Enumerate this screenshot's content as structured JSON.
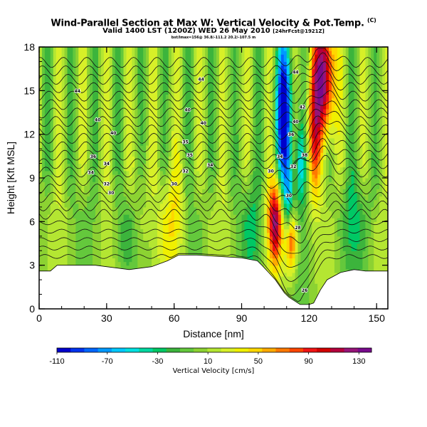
{
  "chart_data": {
    "type": "heatmap",
    "title": "Wind-Parallel Section at Max W: Vertical Velocity & Pot.Temp.",
    "title_mark": "(C)",
    "subtitle": "Valid 1400 LST (1200Z) WED 26 May 2010",
    "subtitle_suffix": "[24hrFcst@1921Z]",
    "subsubtitle": "bst/lmax=156@ 36.8/-111.2 20.2/-107.5 m",
    "xlabel": "Distance [nm]",
    "ylabel": "Height [Kft MSL]",
    "xlim": [
      0,
      155
    ],
    "ylim": [
      0,
      18
    ],
    "xticks": [
      "0",
      "30",
      "60",
      "90",
      "120",
      "150"
    ],
    "yticks": [
      "0",
      "3",
      "6",
      "9",
      "12",
      "15",
      "18"
    ],
    "colorbar": {
      "label": "Vertical Velocity [cm/s]",
      "ticks": [
        "-110",
        "-70",
        "-30",
        "10",
        "50",
        "90",
        "130"
      ],
      "min": -110,
      "max": 140,
      "colors": [
        "#0000cc",
        "#0033ee",
        "#0066ff",
        "#0099ff",
        "#00c8ff",
        "#00e0e0",
        "#00d7a0",
        "#00c864",
        "#3cb43c",
        "#64c83c",
        "#8cd232",
        "#b4e632",
        "#d8f028",
        "#f0f000",
        "#ffd700",
        "#ffaa00",
        "#ff7800",
        "#ff4600",
        "#f01414",
        "#d20000",
        "#b4003c",
        "#961478",
        "#780a8c"
      ]
    },
    "terrain_profile": {
      "distance_nm": [
        0,
        5,
        8,
        25,
        40,
        50,
        57,
        62,
        70,
        80,
        90,
        97,
        99,
        102,
        105,
        109,
        111,
        113,
        116,
        120,
        122,
        125,
        128,
        134,
        140,
        145,
        150,
        155
      ],
      "height_kft": [
        2.6,
        2.6,
        3.0,
        3.0,
        2.7,
        2.9,
        3.3,
        3.7,
        3.7,
        3.6,
        3.5,
        3.3,
        3.0,
        2.5,
        2.0,
        1.1,
        0.8,
        0.6,
        0.3,
        0.3,
        0.4,
        1.3,
        2.0,
        2.5,
        2.7,
        2.6,
        2.6,
        2.6
      ]
    },
    "contour_labels": [
      {
        "value": "44",
        "x": 17,
        "y": 15.0
      },
      {
        "value": "40",
        "x": 26,
        "y": 13.0
      },
      {
        "value": "40",
        "x": 33,
        "y": 12.1
      },
      {
        "value": "36",
        "x": 24,
        "y": 10.5
      },
      {
        "value": "34",
        "x": 30,
        "y": 10.0
      },
      {
        "value": "34",
        "x": 23,
        "y": 9.4
      },
      {
        "value": "32",
        "x": 30,
        "y": 8.6
      },
      {
        "value": "30",
        "x": 32,
        "y": 8.0
      },
      {
        "value": "44",
        "x": 72,
        "y": 15.8
      },
      {
        "value": "40",
        "x": 66,
        "y": 13.7
      },
      {
        "value": "40",
        "x": 73,
        "y": 12.8
      },
      {
        "value": "35",
        "x": 65,
        "y": 11.5
      },
      {
        "value": "35",
        "x": 67,
        "y": 10.6
      },
      {
        "value": "34",
        "x": 76,
        "y": 9.9
      },
      {
        "value": "32",
        "x": 65,
        "y": 9.5
      },
      {
        "value": "30",
        "x": 60,
        "y": 8.6
      },
      {
        "value": "44",
        "x": 114,
        "y": 16.3
      },
      {
        "value": "42",
        "x": 117,
        "y": 13.9
      },
      {
        "value": "40",
        "x": 114,
        "y": 12.9
      },
      {
        "value": "36",
        "x": 112,
        "y": 12.0
      },
      {
        "value": "38",
        "x": 118,
        "y": 10.6
      },
      {
        "value": "34",
        "x": 107,
        "y": 10.5
      },
      {
        "value": "32",
        "x": 113,
        "y": 9.8
      },
      {
        "value": "30",
        "x": 103,
        "y": 9.5
      },
      {
        "value": "30",
        "x": 111,
        "y": 7.8
      },
      {
        "value": "28",
        "x": 115,
        "y": 5.6
      },
      {
        "value": "26",
        "x": 118,
        "y": 1.3
      }
    ],
    "grid": false,
    "legend": "bottom"
  }
}
